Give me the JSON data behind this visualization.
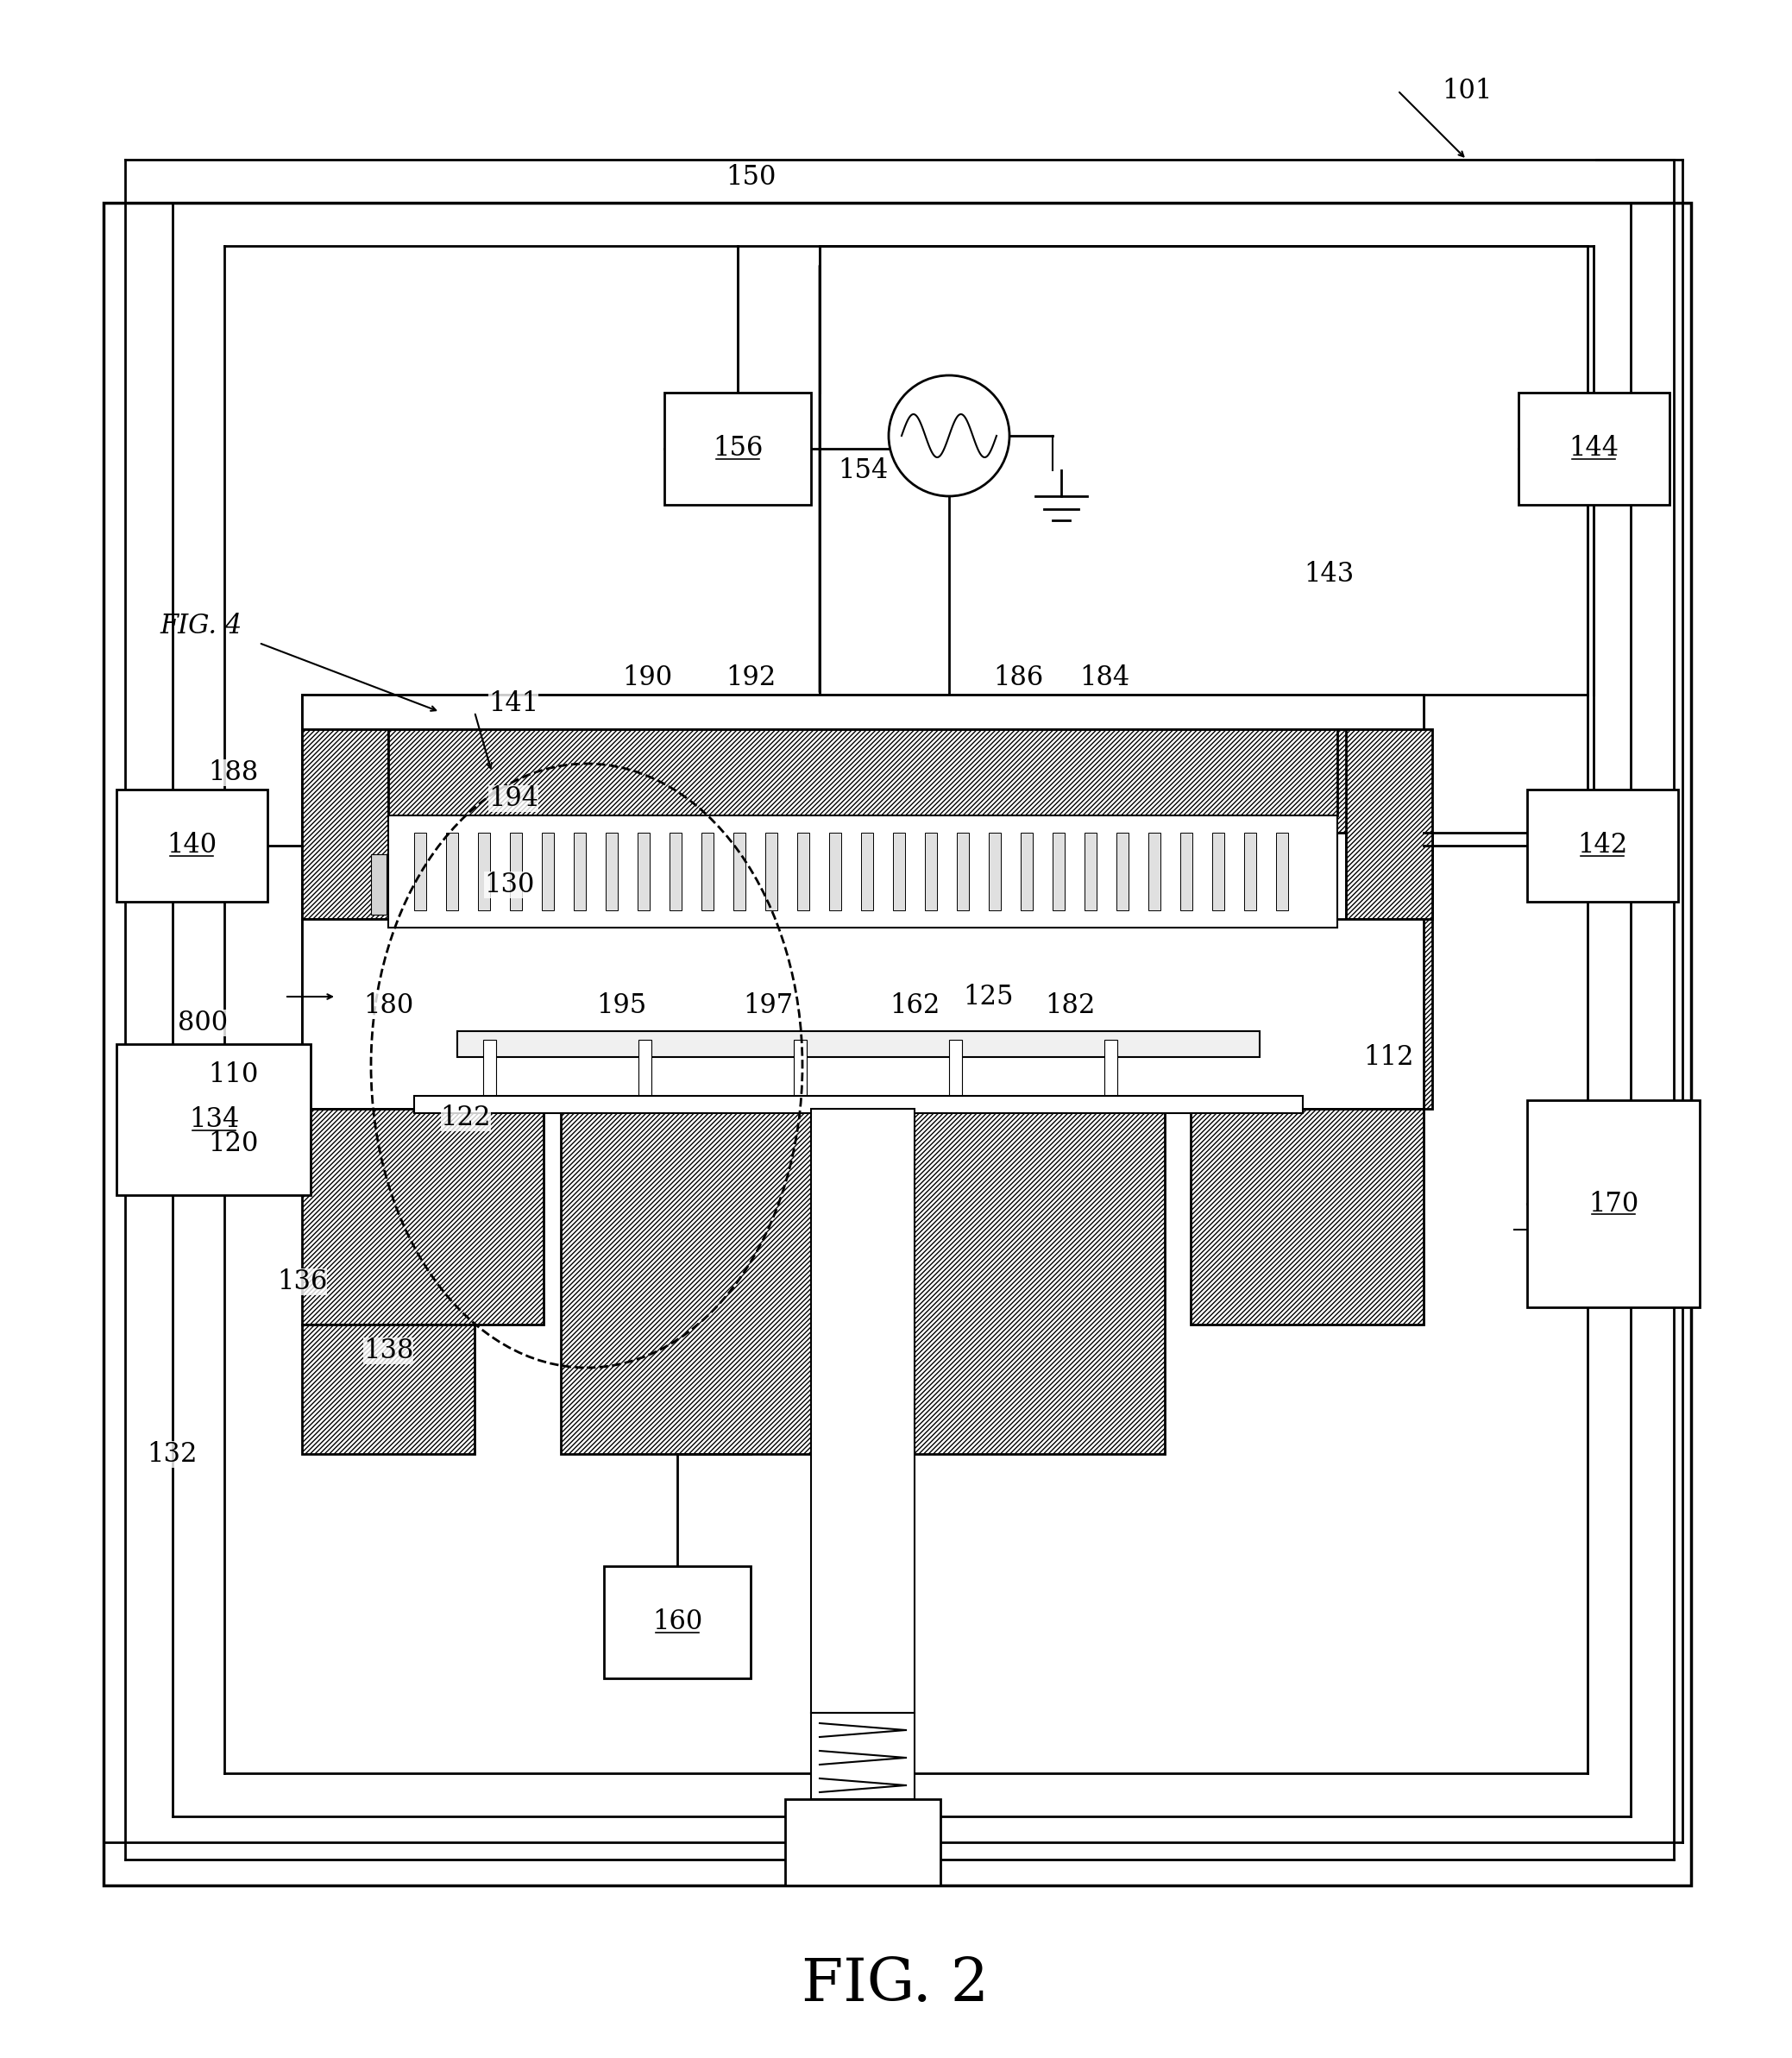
{
  "fig_label": "FIG. 2",
  "fig4_label": "FIG. 4",
  "ref_101": "101",
  "ref_150": "150",
  "ref_156": "156",
  "ref_154": "154",
  "ref_144": "144",
  "ref_143": "143",
  "ref_140": "140",
  "ref_142": "142",
  "ref_188": "188",
  "ref_130": "130",
  "ref_194": "194",
  "ref_190": "190",
  "ref_192": "192",
  "ref_186": "186",
  "ref_184": "184",
  "ref_800": "800",
  "ref_110": "110",
  "ref_120": "120",
  "ref_180": "180",
  "ref_195": "195",
  "ref_197": "197",
  "ref_162": "162",
  "ref_125": "125",
  "ref_182": "182",
  "ref_112": "112",
  "ref_122": "122",
  "ref_134": "134",
  "ref_136": "136",
  "ref_138": "138",
  "ref_132": "132",
  "ref_160": "160",
  "ref_170": "170",
  "ref_141": "141",
  "bg_color": "#ffffff",
  "line_color": "#000000",
  "hatch_color": "#000000",
  "lw": 1.5
}
